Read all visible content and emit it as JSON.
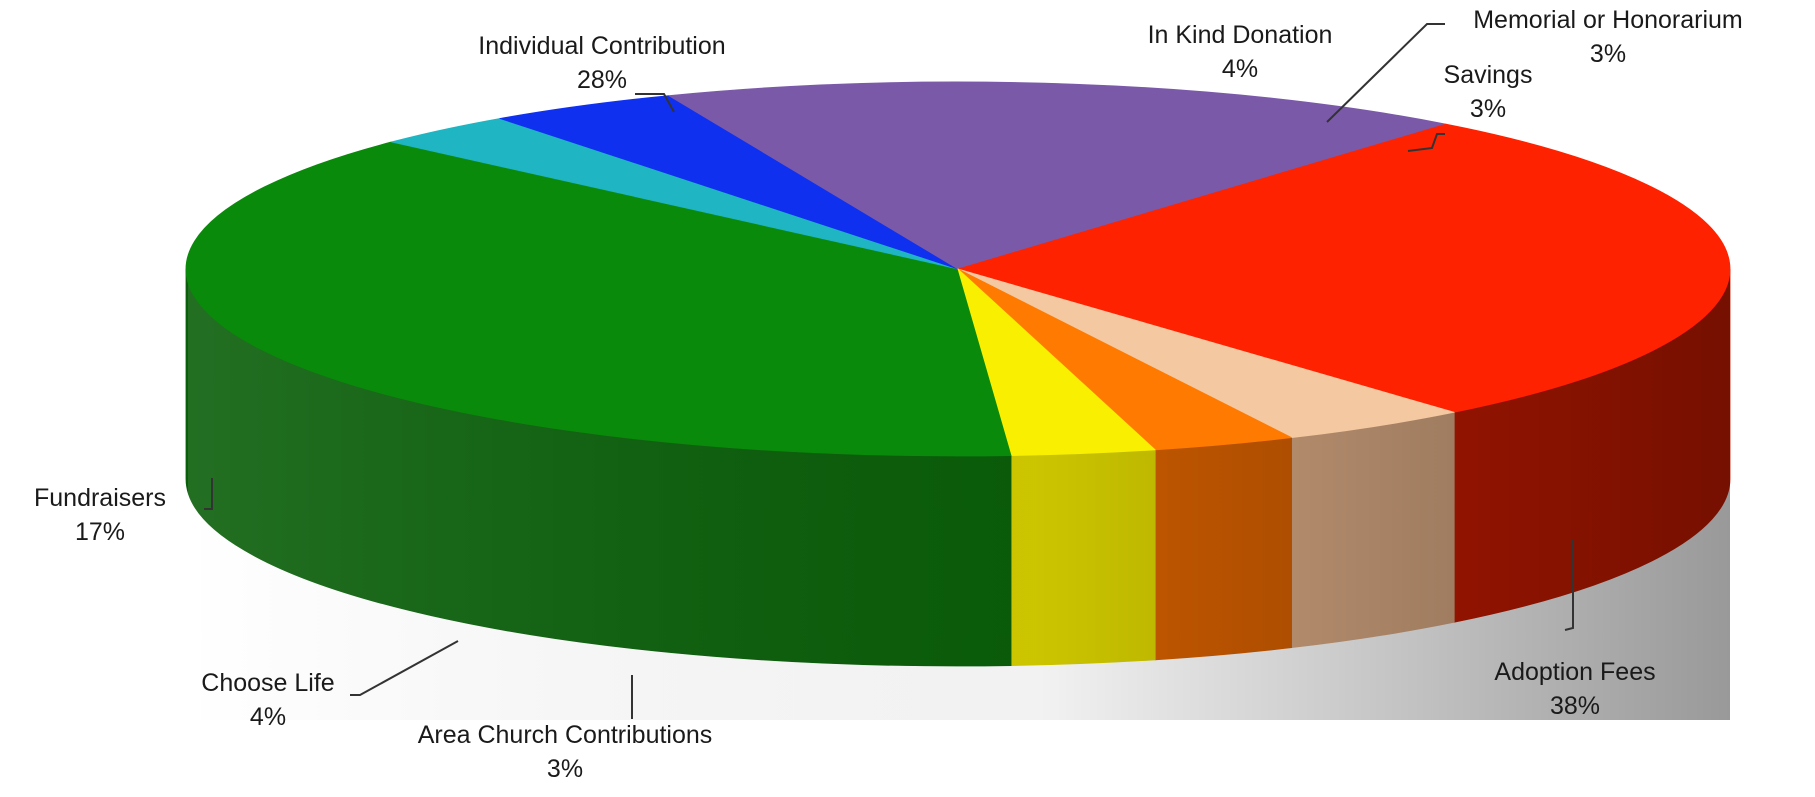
{
  "chart_data": {
    "type": "pie",
    "three_d": true,
    "title": "",
    "legend": "none",
    "slices": [
      {
        "label": "Adoption Fees",
        "value": 38,
        "display": "38%",
        "color": "#0a8a0a",
        "side_color": "#0a5f0a"
      },
      {
        "label": "Area Church Contributions",
        "value": 3,
        "display": "3%",
        "color": "#1fb5c2",
        "side_color": "#16a6b1"
      },
      {
        "label": "Choose Life",
        "value": 4,
        "display": "4%",
        "color": "#1030f0",
        "side_color": "#0a20e6"
      },
      {
        "label": "Fundraisers",
        "value": 17,
        "display": "17%",
        "color": "#7a5aa8",
        "side_color": "#5e4588"
      },
      {
        "label": "Individual Contribution",
        "value": 28,
        "display": "28%",
        "color": "#ff2200",
        "side_color": "#c41a00"
      },
      {
        "label": "In Kind Donation",
        "value": 4,
        "display": "4%",
        "color": "#f4c8a0",
        "side_color": "#d8a882"
      },
      {
        "label": "Memorial or Honorarium",
        "value": 3,
        "display": "3%",
        "color": "#ff7a00",
        "side_color": "#d45f00"
      },
      {
        "label": "Savings",
        "value": 3,
        "display": "3%",
        "color": "#f8f000",
        "side_color": "#d6cf00"
      }
    ]
  }
}
